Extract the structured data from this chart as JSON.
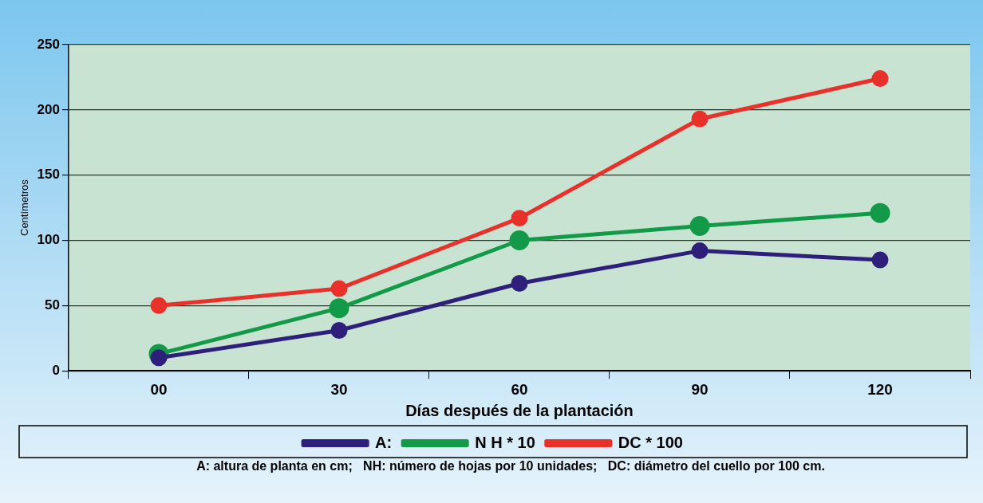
{
  "chart_data": {
    "type": "line",
    "xlabel": "Días después de la plantación",
    "ylabel": "Centímetros",
    "categories": [
      "00",
      "30",
      "60",
      "90",
      "120"
    ],
    "series": [
      {
        "name": "A:",
        "color": "#2e1f7a",
        "values": [
          10,
          31,
          67,
          92,
          85
        ]
      },
      {
        "name": "N H * 10",
        "color": "#139a48",
        "values": [
          13,
          48,
          100,
          111,
          121
        ]
      },
      {
        "name": "DC * 100",
        "color": "#e8312a",
        "values": [
          50,
          63,
          117,
          193,
          224
        ]
      }
    ],
    "ylim": [
      0,
      250
    ],
    "yticks": [
      0,
      50,
      100,
      150,
      200,
      250
    ],
    "grid": "y",
    "legend": "bottom",
    "marker": "circle",
    "line_style": "solid",
    "annotations": [
      "A: altura de planta en cm;   NH: número de hojas por 10 unidades;   DC: diámetro del cuello por 100 cm."
    ]
  }
}
